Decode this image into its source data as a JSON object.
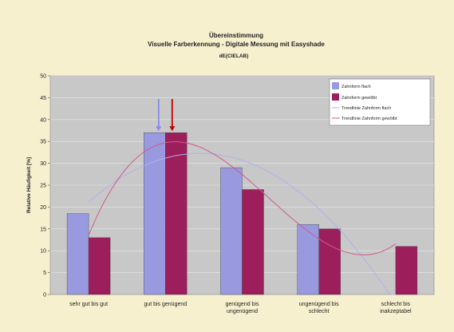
{
  "chart_data": {
    "type": "bar",
    "title": "Übereinstimmung",
    "subtitle": "Visuelle Farberkennung - Digitale Messung mit Easyshade",
    "axis_note": "dE(CIELAB)",
    "xlabel": "",
    "ylabel": "Relative Häufigkeit [%]",
    "ylim": [
      0,
      50
    ],
    "yticks": [
      0,
      5,
      10,
      15,
      20,
      25,
      30,
      35,
      40,
      45,
      50
    ],
    "grid": true,
    "legend_position": "top-right",
    "categories": [
      [
        "sehr gut bis gut"
      ],
      [
        "gut bis genügend"
      ],
      [
        "genügend bis",
        "ungenügend"
      ],
      [
        "ungenügend bis",
        "schlecht"
      ],
      [
        "schlecht bis",
        "inakzeptabel"
      ]
    ],
    "series": [
      {
        "name": "Zahnform flach",
        "values": [
          18.5,
          37,
          29,
          16,
          0
        ],
        "color": "#9999e0"
      },
      {
        "name": "Zahnform gewölbt",
        "values": [
          13,
          37,
          24,
          15,
          11
        ],
        "color": "#9c1f5c"
      }
    ],
    "trendlines": [
      {
        "name": "Trendlinie Zahnform flach",
        "color": "#b0b0f0"
      },
      {
        "name": "Trendlinie Zahnform gewölbt",
        "color": "#d05a8a"
      }
    ],
    "annotations": [
      {
        "type": "arrow",
        "category_index": 1,
        "series": "Zahnform gewölbt",
        "color": "#c00000"
      },
      {
        "type": "arrow",
        "category_index": 1,
        "series": "Zahnform flach",
        "color": "#8a8ae8"
      }
    ]
  }
}
